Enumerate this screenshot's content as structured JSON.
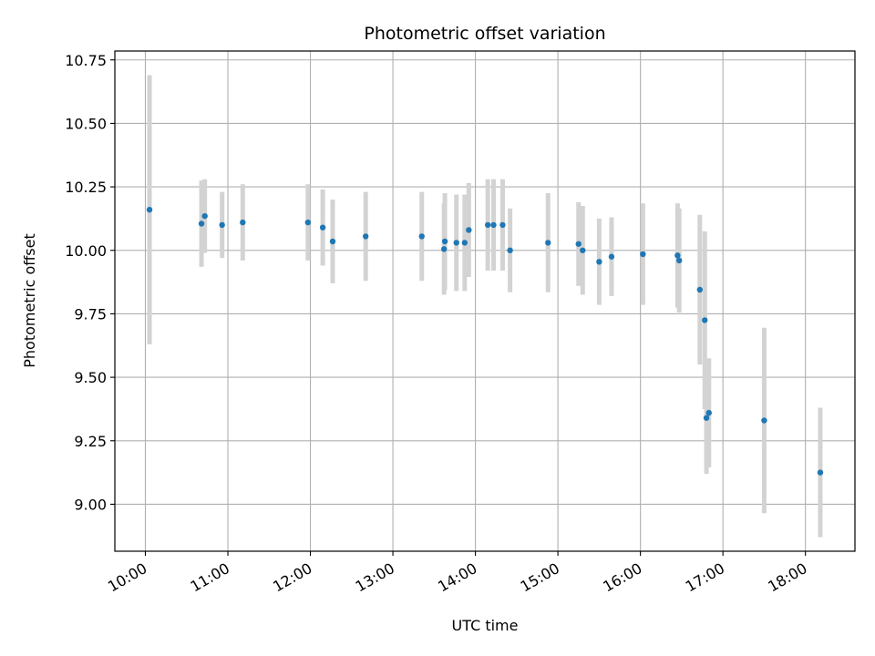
{
  "chart_data": {
    "type": "scatter",
    "title": "Photometric offset variation",
    "xlabel": "UTC time",
    "ylabel": "Photometric offset",
    "grid": true,
    "xlim_hours": [
      9.63,
      18.6
    ],
    "ylim": [
      8.815,
      10.785
    ],
    "x_ticks": [
      {
        "hour": 10,
        "label": "10:00"
      },
      {
        "hour": 11,
        "label": "11:00"
      },
      {
        "hour": 12,
        "label": "12:00"
      },
      {
        "hour": 13,
        "label": "13:00"
      },
      {
        "hour": 14,
        "label": "14:00"
      },
      {
        "hour": 15,
        "label": "15:00"
      },
      {
        "hour": 16,
        "label": "16:00"
      },
      {
        "hour": 17,
        "label": "17:00"
      },
      {
        "hour": 18,
        "label": "18:00"
      }
    ],
    "y_ticks": [
      {
        "value": 9.0,
        "label": "9.00"
      },
      {
        "value": 9.25,
        "label": "9.25"
      },
      {
        "value": 9.5,
        "label": "9.50"
      },
      {
        "value": 9.75,
        "label": "9.75"
      },
      {
        "value": 10.0,
        "label": "10.00"
      },
      {
        "value": 10.25,
        "label": "10.25"
      },
      {
        "value": 10.5,
        "label": "10.50"
      },
      {
        "value": 10.75,
        "label": "10.75"
      }
    ],
    "point_color": "#1f77b4",
    "errorbar_color": "#d3d3d3",
    "points": [
      {
        "t": 10.05,
        "y": 10.16,
        "err": 0.53
      },
      {
        "t": 10.68,
        "y": 10.105,
        "err": 0.17
      },
      {
        "t": 10.72,
        "y": 10.135,
        "err": 0.145
      },
      {
        "t": 10.93,
        "y": 10.1,
        "err": 0.13
      },
      {
        "t": 11.18,
        "y": 10.11,
        "err": 0.15
      },
      {
        "t": 11.97,
        "y": 10.11,
        "err": 0.15
      },
      {
        "t": 12.15,
        "y": 10.09,
        "err": 0.15
      },
      {
        "t": 12.27,
        "y": 10.035,
        "err": 0.165
      },
      {
        "t": 12.67,
        "y": 10.055,
        "err": 0.175
      },
      {
        "t": 13.35,
        "y": 10.055,
        "err": 0.175
      },
      {
        "t": 13.62,
        "y": 10.005,
        "err": 0.18
      },
      {
        "t": 13.63,
        "y": 10.035,
        "err": 0.19
      },
      {
        "t": 13.77,
        "y": 10.03,
        "err": 0.19
      },
      {
        "t": 13.87,
        "y": 10.03,
        "err": 0.19
      },
      {
        "t": 13.92,
        "y": 10.08,
        "err": 0.185
      },
      {
        "t": 14.15,
        "y": 10.1,
        "err": 0.18
      },
      {
        "t": 14.22,
        "y": 10.1,
        "err": 0.18
      },
      {
        "t": 14.33,
        "y": 10.1,
        "err": 0.18
      },
      {
        "t": 14.42,
        "y": 10.0,
        "err": 0.165
      },
      {
        "t": 14.88,
        "y": 10.03,
        "err": 0.195
      },
      {
        "t": 15.25,
        "y": 10.025,
        "err": 0.165
      },
      {
        "t": 15.3,
        "y": 10.0,
        "err": 0.175
      },
      {
        "t": 15.5,
        "y": 9.955,
        "err": 0.17
      },
      {
        "t": 15.65,
        "y": 9.975,
        "err": 0.155
      },
      {
        "t": 16.03,
        "y": 9.985,
        "err": 0.2
      },
      {
        "t": 16.45,
        "y": 9.98,
        "err": 0.205
      },
      {
        "t": 16.47,
        "y": 9.96,
        "err": 0.205
      },
      {
        "t": 16.72,
        "y": 9.845,
        "err": 0.295
      },
      {
        "t": 16.78,
        "y": 9.725,
        "err": 0.35
      },
      {
        "t": 16.8,
        "y": 9.34,
        "err": 0.22
      },
      {
        "t": 16.83,
        "y": 9.36,
        "err": 0.215
      },
      {
        "t": 17.5,
        "y": 9.33,
        "err": 0.365
      },
      {
        "t": 18.18,
        "y": 9.125,
        "err": 0.255
      }
    ]
  }
}
